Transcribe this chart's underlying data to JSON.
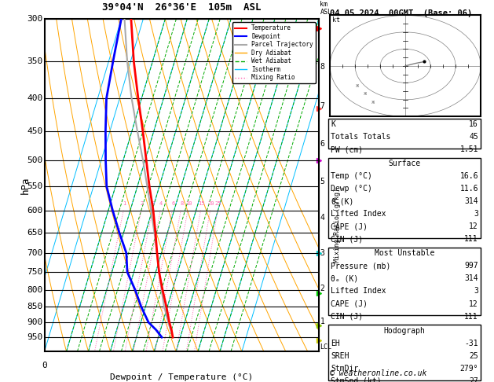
{
  "title": "39°04'N  26°36'E  105m  ASL",
  "date_title": "04.05.2024  00GMT  (Base: 06)",
  "xlabel": "Dewpoint / Temperature (°C)",
  "ylabel_left": "hPa",
  "pressure_major": [
    300,
    350,
    400,
    450,
    500,
    550,
    600,
    650,
    700,
    750,
    800,
    850,
    900,
    950
  ],
  "temp_profile": {
    "pressure": [
      950,
      925,
      900,
      850,
      800,
      750,
      700,
      650,
      600,
      550,
      500,
      450,
      400,
      350,
      300
    ],
    "temp": [
      16.6,
      15.0,
      13.0,
      9.5,
      5.5,
      1.5,
      -2.0,
      -5.5,
      -9.5,
      -14.5,
      -19.5,
      -25.0,
      -31.5,
      -38.5,
      -45.5
    ]
  },
  "dewp_profile": {
    "pressure": [
      950,
      925,
      900,
      850,
      800,
      750,
      700,
      650,
      600,
      550,
      500,
      450,
      400,
      350,
      300
    ],
    "temp": [
      11.6,
      8.0,
      3.5,
      -2.0,
      -7.0,
      -13.0,
      -16.0,
      -22.0,
      -28.0,
      -34.0,
      -38.0,
      -42.0,
      -46.0,
      -48.0,
      -50.0
    ]
  },
  "parcel_profile": {
    "pressure": [
      950,
      900,
      850,
      800,
      750,
      700,
      650,
      600,
      550,
      500,
      450,
      400,
      350,
      300
    ],
    "temp": [
      16.6,
      12.5,
      8.5,
      5.0,
      1.5,
      -2.0,
      -6.0,
      -10.5,
      -15.5,
      -21.0,
      -27.5,
      -34.5,
      -41.5,
      -48.5
    ]
  },
  "lcl_pressure": 960,
  "isotherm_color": "#00bfff",
  "dry_adiabat_color": "#ffa500",
  "wet_adiabat_color": "#00aa00",
  "mixing_ratio_color": "#ff69b4",
  "temp_color": "#ff0000",
  "dewp_color": "#0000ff",
  "parcel_color": "#aaaaaa",
  "km_ticks": [
    1,
    2,
    3,
    4,
    5,
    6,
    7,
    8
  ],
  "km_pressures": [
    898,
    795,
    701,
    616,
    540,
    472,
    411,
    357
  ],
  "background_color": "#ffffff"
}
